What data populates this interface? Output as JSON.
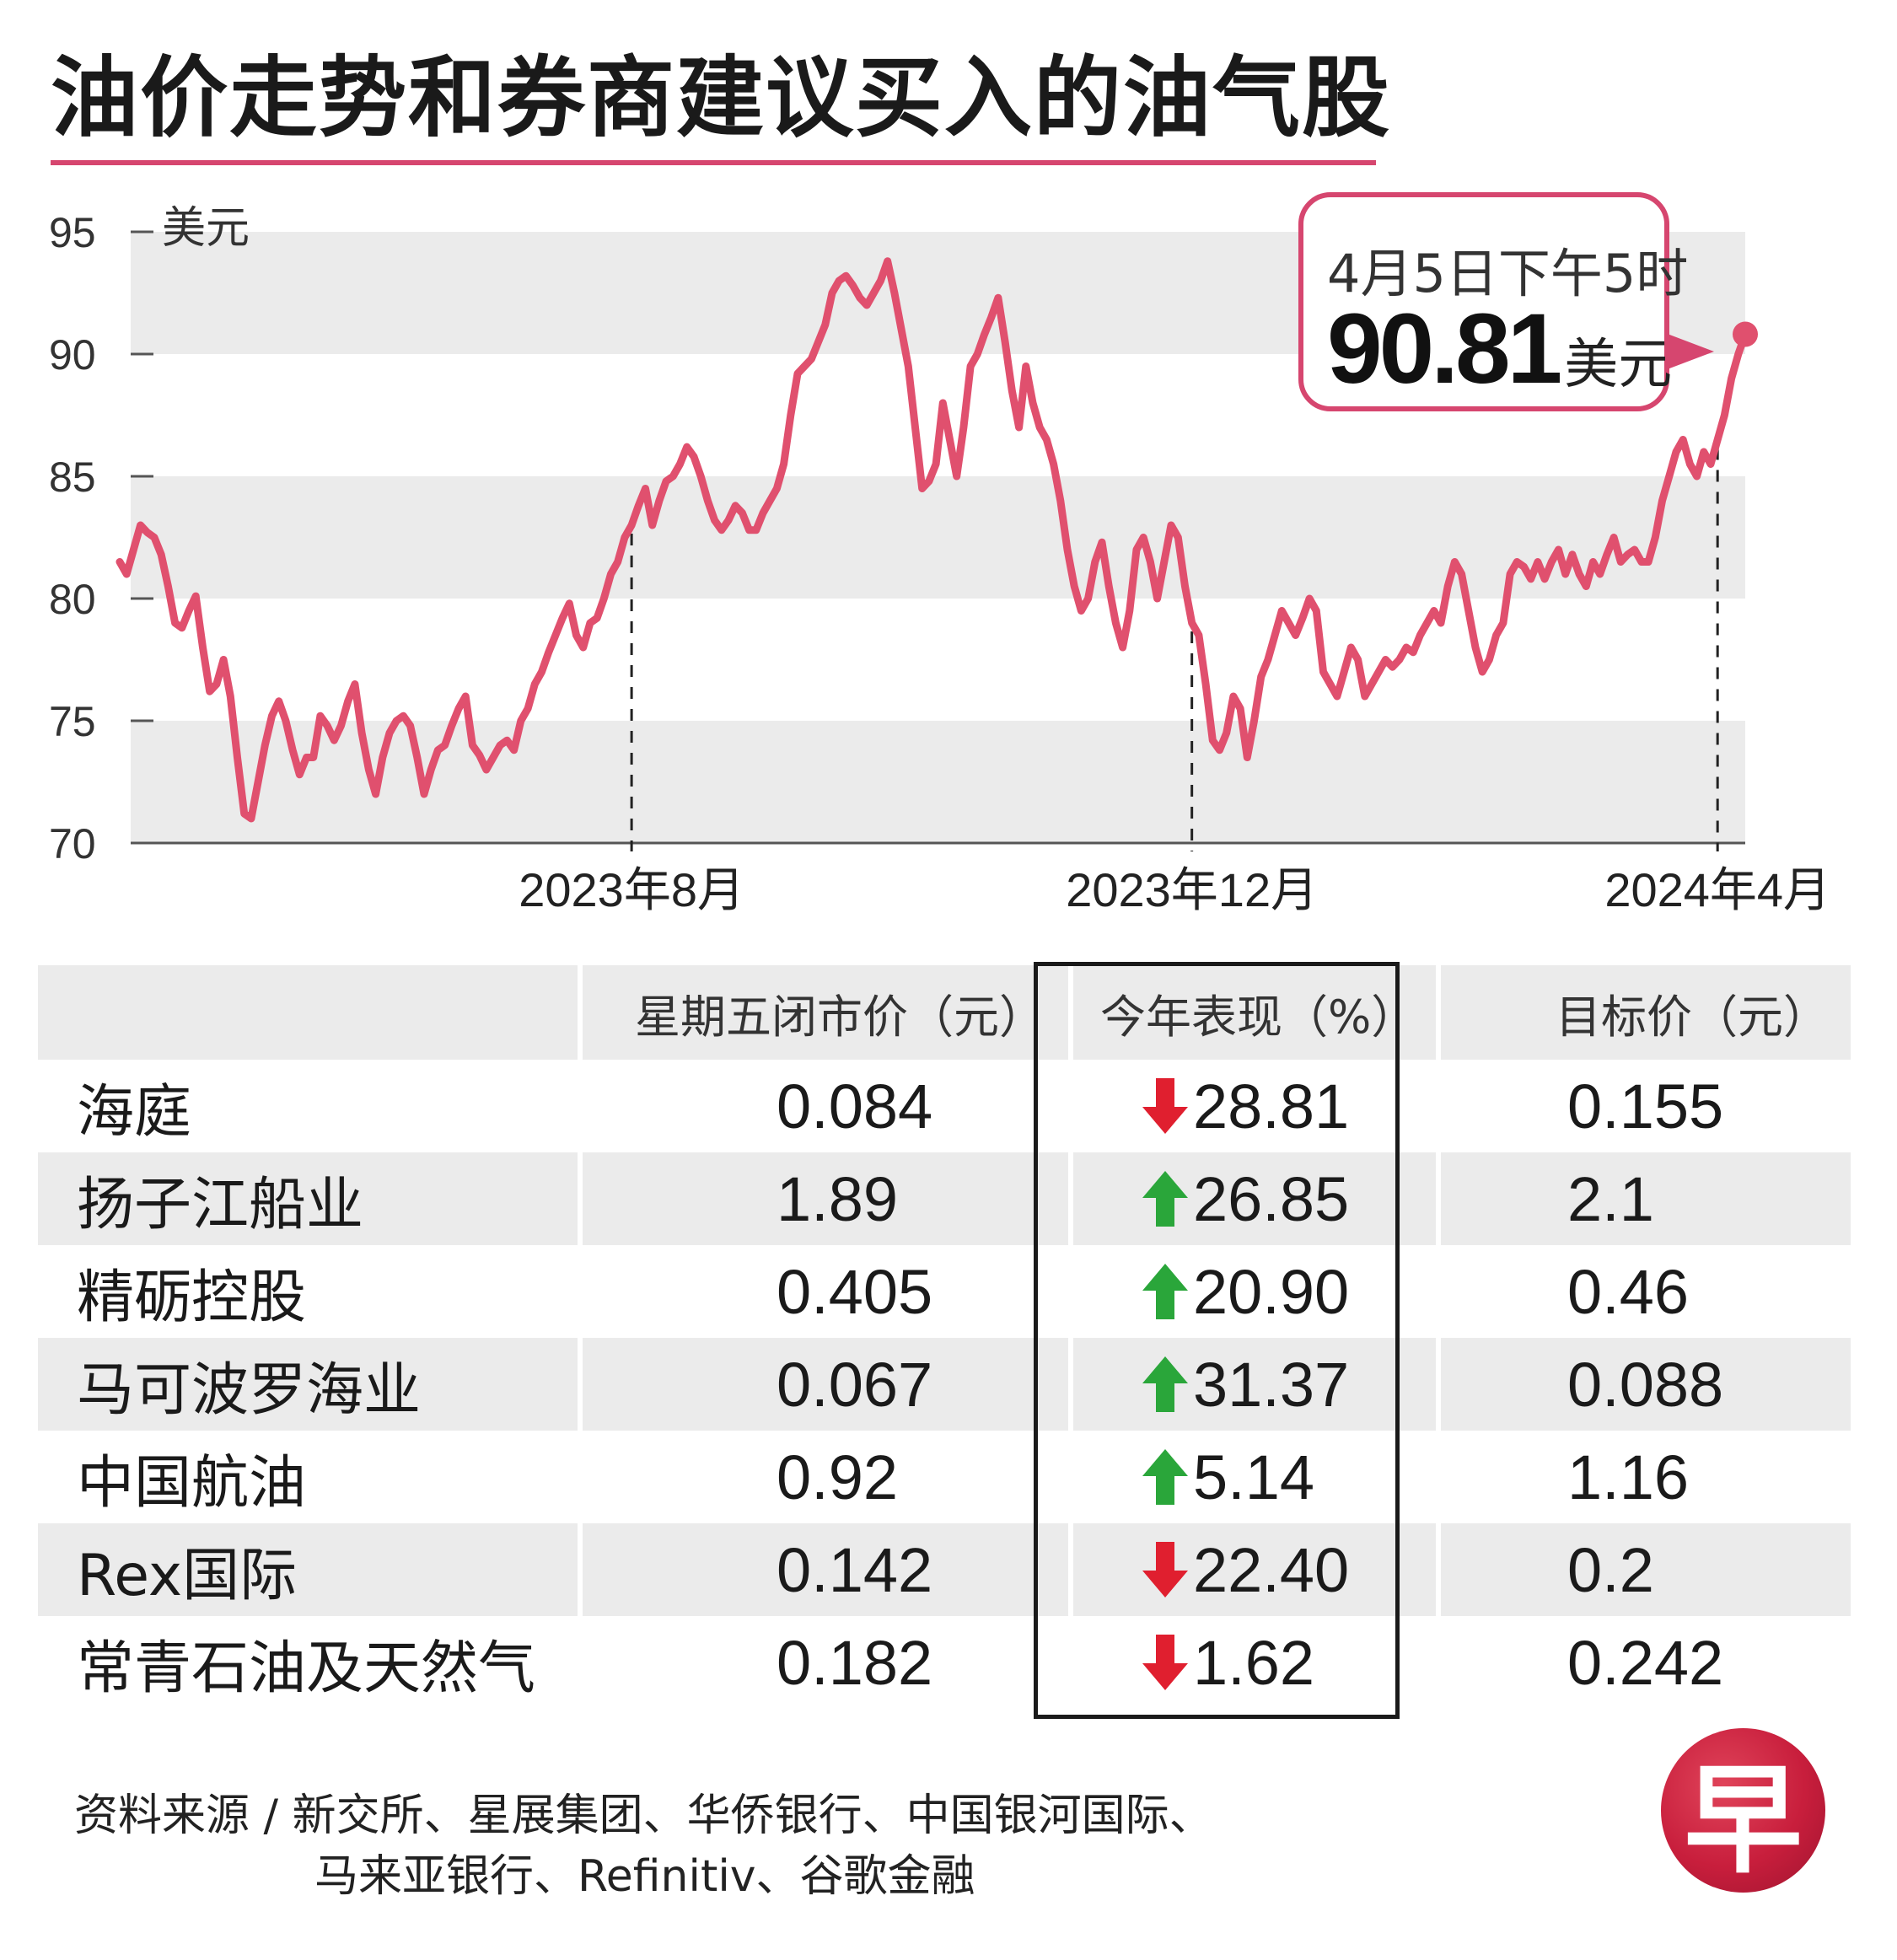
{
  "title": "油价走势和券商建议买入的油气股",
  "chart_data": {
    "type": "line",
    "ylabel": "美元",
    "ylim": [
      70,
      95
    ],
    "y_ticks": [
      95,
      90,
      85,
      80,
      75,
      70
    ],
    "x_tick_labels": [
      "2023年8月",
      "2023年12月",
      "2024年4月"
    ],
    "series": [
      {
        "values": [
          81.5,
          81.0,
          82.0,
          83.0,
          82.7,
          82.5,
          81.8,
          80.5,
          79.0,
          78.8,
          79.5,
          80.1,
          78.0,
          76.2,
          76.5,
          77.5,
          76.0,
          73.5,
          71.2,
          71.0,
          72.5,
          74.0,
          75.2,
          75.8,
          75.0,
          73.8,
          72.8,
          73.5,
          73.5,
          75.2,
          74.8,
          74.2,
          74.8,
          75.8,
          76.5,
          74.5,
          73.0,
          72.0,
          73.5,
          74.5,
          75.0,
          75.2,
          74.8,
          73.5,
          72.0,
          73.0,
          73.8,
          74.0,
          74.8,
          75.5,
          76.0,
          74.0,
          73.6,
          73.0,
          73.5,
          74.0,
          74.2,
          73.8,
          75.0,
          75.5,
          76.5,
          77.0,
          77.8,
          78.5,
          79.2,
          79.8,
          78.5,
          78.0,
          79.0,
          79.2,
          80.0,
          81.0,
          81.5,
          82.5,
          83.0,
          83.8,
          84.5,
          83.0,
          84.0,
          84.8,
          85.0,
          85.5,
          86.2,
          85.8,
          85.0,
          84.0,
          83.2,
          82.8,
          83.2,
          83.8,
          83.5,
          82.8,
          82.8,
          83.5,
          84.0,
          84.5,
          85.5,
          87.5,
          89.2,
          89.5,
          89.8,
          90.5,
          91.2,
          92.5,
          93.0,
          93.2,
          92.8,
          92.3,
          92.0,
          92.5,
          93.0,
          93.8,
          92.5,
          91.0,
          89.5,
          87.0,
          84.5,
          84.8,
          85.5,
          88.0,
          86.5,
          85.0,
          87.0,
          89.5,
          90.0,
          90.8,
          91.5,
          92.3,
          90.5,
          88.5,
          87.0,
          89.5,
          88.0,
          87.0,
          86.5,
          85.5,
          84.0,
          82.0,
          80.5,
          79.5,
          80.0,
          81.5,
          82.3,
          80.5,
          79.0,
          78.0,
          79.5,
          82.0,
          82.5,
          81.5,
          80.0,
          81.5,
          83.0,
          82.5,
          80.5,
          79.0,
          78.5,
          76.5,
          74.2,
          73.8,
          74.5,
          76.0,
          75.5,
          73.5,
          75.0,
          76.8,
          77.5,
          78.5,
          79.5,
          79.0,
          78.5,
          79.2,
          80.0,
          79.5,
          77.0,
          76.5,
          76.0,
          77.0,
          78.0,
          77.5,
          76.0,
          76.5,
          77.0,
          77.5,
          77.2,
          77.5,
          78.0,
          77.8,
          78.5,
          79.0,
          79.5,
          79.0,
          80.5,
          81.5,
          81.0,
          79.5,
          78.0,
          77.0,
          77.5,
          78.5,
          79.0,
          81.0,
          81.5,
          81.3,
          80.8,
          81.5,
          80.8,
          81.5,
          82.0,
          81.0,
          81.8,
          81.0,
          80.5,
          81.5,
          81.0,
          81.8,
          82.5,
          81.5,
          81.8,
          82.0,
          81.5,
          81.5,
          82.5,
          84.0,
          85.0,
          86.0,
          86.5,
          85.5,
          85.0,
          86.0,
          85.5,
          86.5,
          87.5,
          89.0,
          90.0,
          90.81
        ]
      }
    ],
    "annotation": {
      "date": "4月5日下午5时",
      "value": "90.81",
      "unit": "美元"
    }
  },
  "table": {
    "headers": [
      "星期五闭市价（元）",
      "今年表现（%）",
      "目标价（元）"
    ],
    "rows": [
      {
        "name": "海庭",
        "close": "0.084",
        "perf": "28.81",
        "dir": "down",
        "target": "0.155"
      },
      {
        "name": "扬子江船业",
        "close": "1.89",
        "perf": "26.85",
        "dir": "up",
        "target": "2.1"
      },
      {
        "name": "精砺控股",
        "close": "0.405",
        "perf": "20.90",
        "dir": "up",
        "target": "0.46"
      },
      {
        "name": "马可波罗海业",
        "close": "0.067",
        "perf": "31.37",
        "dir": "up",
        "target": "0.088"
      },
      {
        "name": "中国航油",
        "close": "0.92",
        "perf": "5.14",
        "dir": "up",
        "target": "1.16"
      },
      {
        "name": "Rex国际",
        "close": "0.142",
        "perf": "22.40",
        "dir": "down",
        "target": "0.2"
      },
      {
        "name": "常青石油及天然气",
        "close": "0.182",
        "perf": "1.62",
        "dir": "down",
        "target": "0.242"
      }
    ]
  },
  "source": {
    "line1": "资料来源 / 新交所、星展集团、华侨银行、中国银河国际、",
    "line2": "马来亚银行、Refinitiv、谷歌金融"
  },
  "logo": {
    "char": "早"
  },
  "colors": {
    "line": "#e0506e",
    "accent": "#d6466f",
    "band": "#ebebeb",
    "up": "#2aa63a",
    "down": "#e01f2f"
  }
}
